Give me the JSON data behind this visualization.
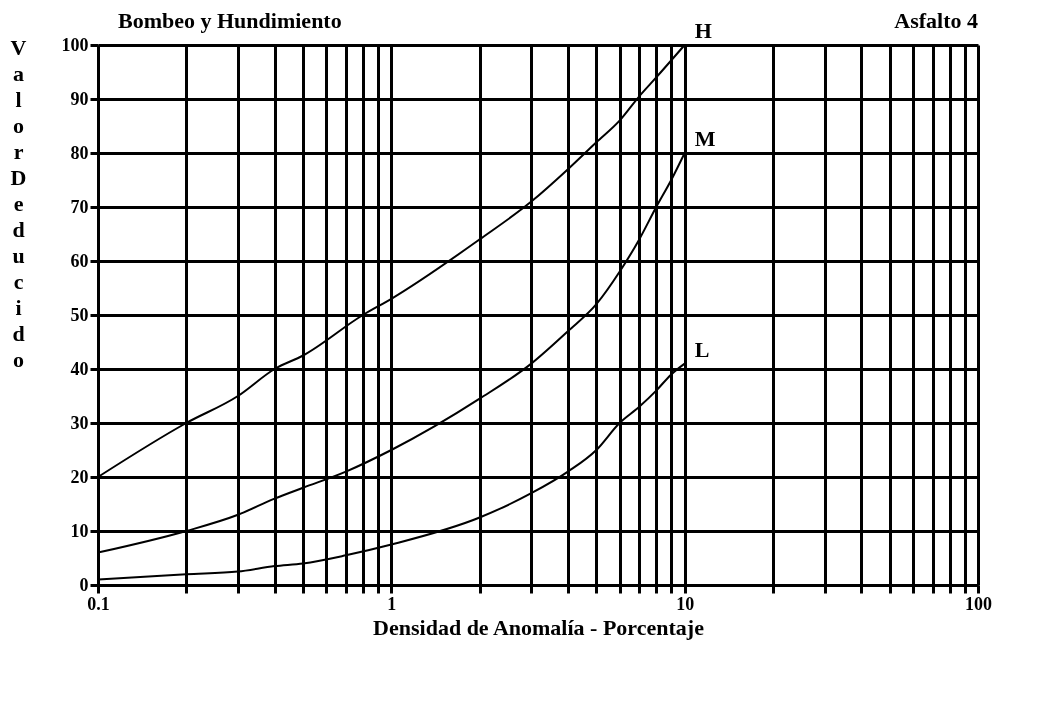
{
  "chart_data": {
    "type": "line",
    "title": "Bombeo y Hundimiento",
    "subtitle": "Asfalto 4",
    "xlabel": "Densidad de Anomalía - Porcentaje",
    "ylabel": "Valor Deducido",
    "log": "x",
    "grid": true,
    "marker": "none",
    "line_style": "solid",
    "xlim": [
      0.1,
      100
    ],
    "ylim": [
      0,
      100
    ],
    "xticks": [
      0.1,
      {
        "value": 0.2,
        "label": null
      },
      {
        "value": 0.3,
        "label": null
      },
      {
        "value": 0.4,
        "label": null
      },
      {
        "value": 0.5,
        "label": null
      },
      {
        "value": 0.6,
        "label": null
      },
      {
        "value": 0.7,
        "label": null
      },
      {
        "value": 0.8,
        "label": null
      },
      {
        "value": 0.9,
        "label": null
      },
      1,
      {
        "value": 2,
        "label": null
      },
      {
        "value": 3,
        "label": null
      },
      {
        "value": 4,
        "label": null
      },
      {
        "value": 5,
        "label": null
      },
      {
        "value": 6,
        "label": null
      },
      {
        "value": 7,
        "label": null
      },
      {
        "value": 8,
        "label": null
      },
      {
        "value": 9,
        "label": null
      },
      10,
      {
        "value": 20,
        "label": null
      },
      {
        "value": 30,
        "label": null
      },
      {
        "value": 40,
        "label": null
      },
      {
        "value": 50,
        "label": null
      },
      {
        "value": 60,
        "label": null
      },
      {
        "value": 70,
        "label": null
      },
      {
        "value": 80,
        "label": null
      },
      {
        "value": 90,
        "label": null
      },
      100
    ],
    "yticks": [
      0,
      10,
      20,
      30,
      40,
      50,
      60,
      70,
      80,
      90,
      100
    ],
    "series": [
      {
        "name": "H",
        "color": "#000000",
        "x": [
          0.1,
          0.2,
          0.3,
          0.4,
          0.5,
          0.8,
          1,
          2,
          3,
          4,
          5,
          6,
          7,
          8,
          10
        ],
        "values": [
          20,
          30,
          35,
          40,
          42.5,
          50,
          53,
          64,
          71,
          77,
          82,
          86,
          90.5,
          94,
          100
        ]
      },
      {
        "name": "M",
        "color": "#000000",
        "x": [
          0.1,
          0.2,
          0.3,
          0.4,
          0.5,
          0.7,
          1,
          2,
          3,
          4,
          5,
          6,
          7,
          8,
          9,
          10
        ],
        "values": [
          6,
          10,
          13,
          16,
          18,
          21,
          25,
          34.5,
          41,
          47,
          52,
          58,
          64,
          70,
          75,
          80
        ]
      },
      {
        "name": "L",
        "color": "#000000",
        "x": [
          0.1,
          0.2,
          0.3,
          0.4,
          0.5,
          0.7,
          1,
          2,
          3,
          4,
          5,
          6,
          7,
          8,
          9,
          10
        ],
        "values": [
          1,
          2,
          2.5,
          3.5,
          4,
          5.5,
          7.5,
          12.5,
          17,
          21,
          25,
          30,
          33,
          36,
          39,
          41
        ]
      }
    ]
  }
}
